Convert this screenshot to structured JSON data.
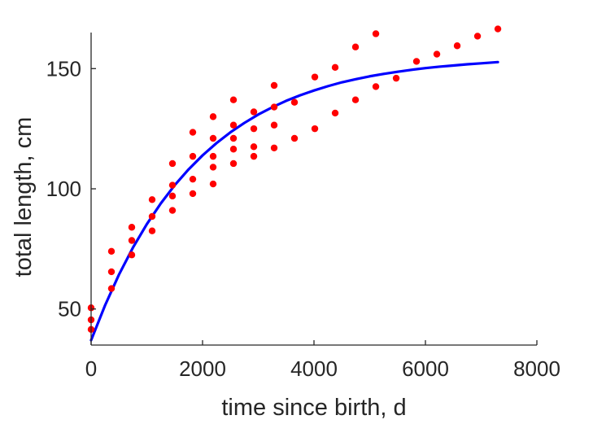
{
  "chart_data": {
    "type": "scatter",
    "xlabel": "time since birth, d",
    "ylabel": "total length, cm",
    "xlim": [
      0,
      8000
    ],
    "ylim": [
      35,
      165
    ],
    "xticks": [
      "0",
      "2000",
      "4000",
      "6000",
      "8000"
    ],
    "yticks": [
      "50",
      "100",
      "150"
    ],
    "grid": false,
    "box": false,
    "colors": {
      "points": "#ff0000",
      "fit": "#0000ff",
      "axis": "#262626"
    },
    "series": [
      {
        "type": "scatter",
        "points": [
          [
            0,
            50.5
          ],
          [
            0,
            45.5
          ],
          [
            0,
            41.5
          ],
          [
            365,
            74
          ],
          [
            365,
            65.5
          ],
          [
            365,
            58.5
          ],
          [
            730,
            84
          ],
          [
            730,
            78.5
          ],
          [
            730,
            72.5
          ],
          [
            1095,
            95.5
          ],
          [
            1095,
            88.5
          ],
          [
            1095,
            82.5
          ],
          [
            1460,
            110.5
          ],
          [
            1460,
            101.5
          ],
          [
            1460,
            97
          ],
          [
            1460,
            91
          ],
          [
            1825,
            123.5
          ],
          [
            1825,
            113.5
          ],
          [
            1825,
            104
          ],
          [
            1825,
            98
          ],
          [
            2190,
            130
          ],
          [
            2190,
            121
          ],
          [
            2190,
            113.5
          ],
          [
            2190,
            109
          ],
          [
            2190,
            102
          ],
          [
            2555,
            137
          ],
          [
            2555,
            126.5
          ],
          [
            2555,
            121
          ],
          [
            2555,
            116.5
          ],
          [
            2555,
            110.5
          ],
          [
            2920,
            132
          ],
          [
            2920,
            125
          ],
          [
            2920,
            117.5
          ],
          [
            2920,
            113.5
          ],
          [
            3285,
            143
          ],
          [
            3285,
            134
          ],
          [
            3285,
            126.5
          ],
          [
            3285,
            117
          ],
          [
            3650,
            136
          ],
          [
            3650,
            121
          ],
          [
            4015,
            146.5
          ],
          [
            4015,
            125
          ],
          [
            4380,
            150.5
          ],
          [
            4380,
            131.5
          ],
          [
            4745,
            159
          ],
          [
            4745,
            137
          ],
          [
            5110,
            164.5
          ],
          [
            5110,
            142.5
          ],
          [
            5475,
            146
          ],
          [
            5840,
            153
          ],
          [
            6205,
            156
          ],
          [
            6570,
            159.5
          ],
          [
            6935,
            163.5
          ],
          [
            7300,
            166.5
          ]
        ]
      },
      {
        "type": "line",
        "x": [
          0,
          250,
          500,
          750,
          1000,
          1250,
          1500,
          1750,
          2000,
          2250,
          2500,
          2750,
          3000,
          3250,
          3500,
          3750,
          4000,
          4250,
          4500,
          4750,
          5000,
          5250,
          5500,
          5750,
          6000,
          6250,
          6500,
          6750,
          7000,
          7300
        ],
        "y": [
          37.0,
          51.5,
          64.3,
          75.5,
          85.3,
          93.9,
          101.5,
          108.1,
          113.9,
          119.0,
          123.5,
          127.4,
          130.9,
          133.9,
          136.6,
          138.9,
          140.9,
          142.7,
          144.3,
          145.6,
          146.8,
          147.8,
          148.7,
          149.5,
          150.2,
          150.8,
          151.3,
          151.8,
          152.2,
          152.7
        ]
      }
    ]
  }
}
